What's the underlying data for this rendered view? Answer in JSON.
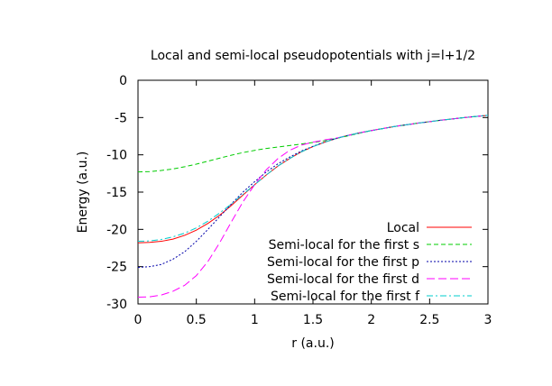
{
  "chart_data": {
    "type": "line",
    "title": "Local and semi-local pseudopotentials with j=l+1/2",
    "xlabel": "r (a.u.)",
    "ylabel": "Energy (a.u.)",
    "xlim": [
      0,
      3
    ],
    "ylim": [
      -30,
      0
    ],
    "xticks": [
      {
        "value": 0,
        "label": "0"
      },
      {
        "value": 0.5,
        "label": "0.5"
      },
      {
        "value": 1,
        "label": "1"
      },
      {
        "value": 1.5,
        "label": "1.5"
      },
      {
        "value": 2,
        "label": "2"
      },
      {
        "value": 2.5,
        "label": "2.5"
      },
      {
        "value": 3,
        "label": "3"
      }
    ],
    "yticks": [
      {
        "value": 0,
        "label": "0"
      },
      {
        "value": -5,
        "label": "-5"
      },
      {
        "value": -10,
        "label": "-10"
      },
      {
        "value": -15,
        "label": "-15"
      },
      {
        "value": -20,
        "label": "-20"
      },
      {
        "value": -25,
        "label": "-25"
      },
      {
        "value": -30,
        "label": "-30"
      }
    ],
    "grid": false,
    "legend_position": "bottom-right",
    "series": [
      {
        "name": "Local",
        "color": "#ff0000",
        "dash": "solid",
        "x": [
          0,
          0.1,
          0.2,
          0.3,
          0.4,
          0.5,
          0.6,
          0.7,
          0.8,
          0.9,
          1.0,
          1.1,
          1.2,
          1.3,
          1.4,
          1.5,
          1.6,
          1.7,
          1.8,
          1.9,
          2.0,
          2.2,
          2.4,
          2.6,
          2.8,
          3.0
        ],
        "y": [
          -21.8,
          -21.75,
          -21.6,
          -21.3,
          -20.8,
          -20.1,
          -19.2,
          -18.1,
          -16.8,
          -15.4,
          -14.0,
          -12.7,
          -11.5,
          -10.5,
          -9.6,
          -8.9,
          -8.3,
          -7.8,
          -7.4,
          -7.05,
          -6.75,
          -6.2,
          -5.75,
          -5.35,
          -5.0,
          -4.7
        ]
      },
      {
        "name": "Semi-local for the first s",
        "color": "#00cc00",
        "dash": "dash",
        "x": [
          0,
          0.1,
          0.2,
          0.3,
          0.4,
          0.5,
          0.6,
          0.7,
          0.8,
          0.9,
          1.0,
          1.1,
          1.2,
          1.3,
          1.4,
          1.5,
          1.6,
          1.7,
          1.8,
          1.9,
          2.0,
          2.2,
          2.4,
          2.6,
          2.8,
          3.0
        ],
        "y": [
          -12.3,
          -12.25,
          -12.1,
          -11.9,
          -11.6,
          -11.25,
          -10.85,
          -10.45,
          -10.05,
          -9.7,
          -9.4,
          -9.15,
          -8.95,
          -8.75,
          -8.55,
          -8.35,
          -8.1,
          -7.8,
          -7.45,
          -7.1,
          -6.75,
          -6.2,
          -5.75,
          -5.35,
          -5.0,
          -4.7
        ]
      },
      {
        "name": "Semi-local for the first p",
        "color": "#0000aa",
        "dash": "dot",
        "x": [
          0,
          0.1,
          0.2,
          0.3,
          0.4,
          0.5,
          0.6,
          0.7,
          0.8,
          0.9,
          1.0,
          1.1,
          1.2,
          1.3,
          1.4,
          1.5,
          1.6,
          1.7,
          1.8,
          1.9,
          2.0,
          2.2,
          2.4,
          2.6,
          2.8,
          3.0
        ],
        "y": [
          -25.1,
          -25.0,
          -24.7,
          -24.0,
          -23.0,
          -21.6,
          -20.0,
          -18.3,
          -16.6,
          -15.0,
          -13.6,
          -12.3,
          -11.2,
          -10.3,
          -9.5,
          -8.85,
          -8.3,
          -7.8,
          -7.4,
          -7.05,
          -6.75,
          -6.2,
          -5.75,
          -5.35,
          -5.0,
          -4.7
        ]
      },
      {
        "name": "Semi-local for the first d",
        "color": "#ff00ff",
        "dash": "longdash",
        "x": [
          0,
          0.1,
          0.2,
          0.3,
          0.4,
          0.5,
          0.6,
          0.7,
          0.8,
          0.9,
          1.0,
          1.1,
          1.2,
          1.3,
          1.4,
          1.5,
          1.6,
          1.7,
          1.8,
          1.9,
          2.0,
          2.2,
          2.4,
          2.6,
          2.8,
          3.0
        ],
        "y": [
          -29.1,
          -29.05,
          -28.8,
          -28.3,
          -27.5,
          -26.2,
          -24.3,
          -21.8,
          -19.0,
          -16.3,
          -14.0,
          -12.0,
          -10.5,
          -9.4,
          -8.7,
          -8.3,
          -8.0,
          -7.75,
          -7.4,
          -7.05,
          -6.75,
          -6.2,
          -5.75,
          -5.35,
          -5.0,
          -4.7
        ]
      },
      {
        "name": "Semi-local for the first f",
        "color": "#00cccc",
        "dash": "dashdot",
        "x": [
          0,
          0.1,
          0.2,
          0.3,
          0.4,
          0.5,
          0.6,
          0.7,
          0.8,
          0.9,
          1.0,
          1.1,
          1.2,
          1.3,
          1.4,
          1.5,
          1.6,
          1.7,
          1.8,
          1.9,
          2.0,
          2.2,
          2.4,
          2.6,
          2.8,
          3.0
        ],
        "y": [
          -21.6,
          -21.55,
          -21.35,
          -21.0,
          -20.5,
          -19.8,
          -18.9,
          -17.8,
          -16.6,
          -15.3,
          -14.0,
          -12.7,
          -11.5,
          -10.5,
          -9.6,
          -8.9,
          -8.3,
          -7.8,
          -7.4,
          -7.05,
          -6.75,
          -6.2,
          -5.75,
          -5.35,
          -5.0,
          -4.7
        ]
      }
    ]
  }
}
